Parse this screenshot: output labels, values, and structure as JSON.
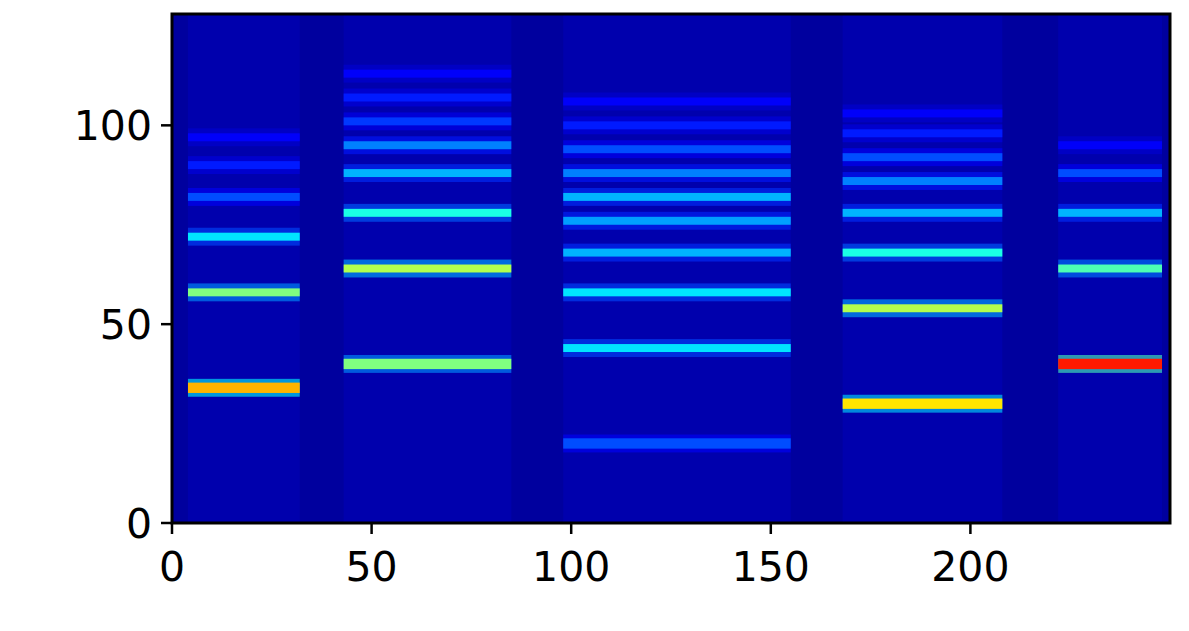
{
  "chart_data": {
    "type": "heatmap",
    "xlim": [
      0,
      250
    ],
    "ylim": [
      0,
      128
    ],
    "xticks": [
      0,
      50,
      100,
      150,
      200
    ],
    "yticks": [
      0,
      50,
      100
    ],
    "clim": [
      0,
      1
    ],
    "background": 0.03,
    "notes": [
      {
        "x0": 4,
        "x1": 32,
        "background": 0.045,
        "bands": [
          {
            "y": 34,
            "value": 0.7
          },
          {
            "y": 58,
            "value": 0.5
          },
          {
            "y": 72,
            "value": 0.35
          },
          {
            "y": 82,
            "value": 0.2
          },
          {
            "y": 90,
            "value": 0.15
          },
          {
            "y": 97,
            "value": 0.12
          }
        ]
      },
      {
        "x0": 43,
        "x1": 85,
        "background": 0.045,
        "bands": [
          {
            "y": 40,
            "value": 0.5
          },
          {
            "y": 64,
            "value": 0.55
          },
          {
            "y": 78,
            "value": 0.4
          },
          {
            "y": 88,
            "value": 0.3
          },
          {
            "y": 95,
            "value": 0.25
          },
          {
            "y": 101,
            "value": 0.18
          },
          {
            "y": 107,
            "value": 0.15
          },
          {
            "y": 113,
            "value": 0.12
          }
        ]
      },
      {
        "x0": 98,
        "x1": 155,
        "background": 0.045,
        "bands": [
          {
            "y": 20,
            "value": 0.2
          },
          {
            "y": 44,
            "value": 0.35
          },
          {
            "y": 58,
            "value": 0.35
          },
          {
            "y": 68,
            "value": 0.3
          },
          {
            "y": 76,
            "value": 0.28
          },
          {
            "y": 82,
            "value": 0.3
          },
          {
            "y": 88,
            "value": 0.25
          },
          {
            "y": 94,
            "value": 0.2
          },
          {
            "y": 100,
            "value": 0.15
          },
          {
            "y": 106,
            "value": 0.12
          }
        ]
      },
      {
        "x0": 168,
        "x1": 208,
        "background": 0.045,
        "bands": [
          {
            "y": 30,
            "value": 0.65
          },
          {
            "y": 54,
            "value": 0.55
          },
          {
            "y": 68,
            "value": 0.4
          },
          {
            "y": 78,
            "value": 0.3
          },
          {
            "y": 86,
            "value": 0.25
          },
          {
            "y": 92,
            "value": 0.2
          },
          {
            "y": 98,
            "value": 0.15
          },
          {
            "y": 103,
            "value": 0.12
          }
        ]
      },
      {
        "x0": 222,
        "x1": 248,
        "background": 0.045,
        "bands": [
          {
            "y": 40,
            "value": 0.85
          },
          {
            "y": 64,
            "value": 0.45
          },
          {
            "y": 78,
            "value": 0.3
          },
          {
            "y": 88,
            "value": 0.2
          },
          {
            "y": 95,
            "value": 0.12
          }
        ]
      }
    ]
  }
}
